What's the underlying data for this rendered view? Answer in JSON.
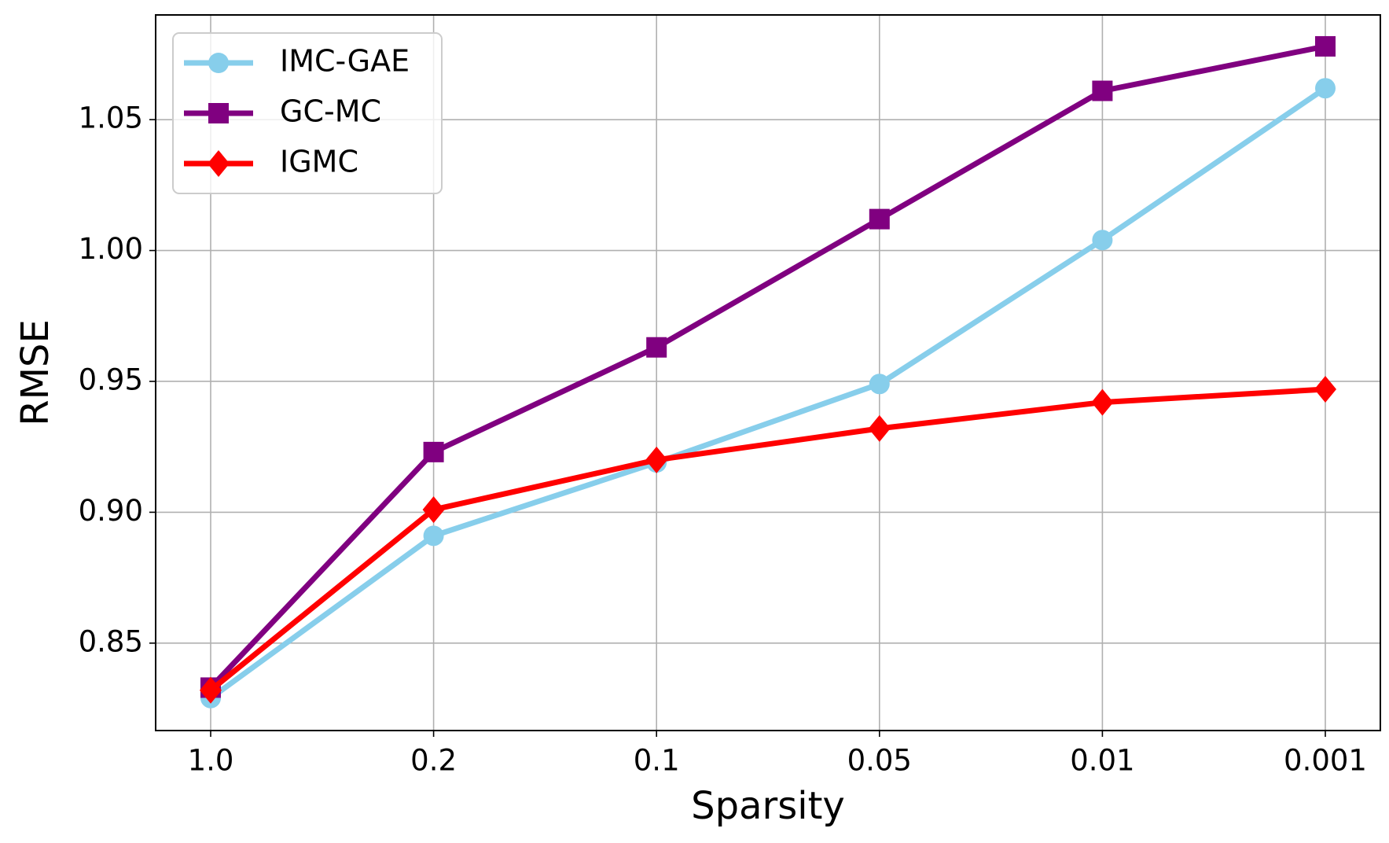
{
  "chart_data": {
    "type": "line",
    "x_label": "Sparsity",
    "y_label": "RMSE",
    "categories": [
      "1.0",
      "0.2",
      "0.1",
      "0.05",
      "0.01",
      "0.001"
    ],
    "series": [
      {
        "name": "IMC-GAE",
        "color": "#87ceeb",
        "marker": "circle",
        "values": [
          0.829,
          0.891,
          0.919,
          0.949,
          1.004,
          1.062
        ]
      },
      {
        "name": "GC-MC",
        "color": "#800080",
        "marker": "square",
        "values": [
          0.833,
          0.923,
          0.963,
          1.012,
          1.061,
          1.078
        ]
      },
      {
        "name": "IGMC",
        "color": "#ff0000",
        "marker": "diamond",
        "values": [
          0.832,
          0.901,
          0.92,
          0.932,
          0.942,
          0.947
        ]
      }
    ],
    "ylim": [
      0.8166,
      1.09
    ],
    "yticks": [
      0.85,
      {
        "value": 0.9,
        "label": "0.90"
      },
      0.95,
      {
        "value": 1,
        "label": "1.00"
      },
      1.05
    ],
    "grid": true,
    "legend": "upper left"
  }
}
